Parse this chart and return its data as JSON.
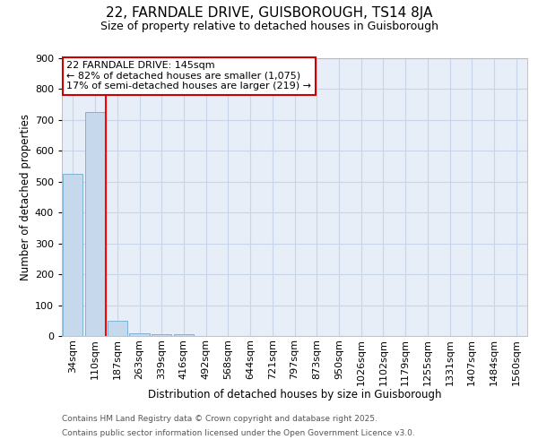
{
  "title": "22, FARNDALE DRIVE, GUISBOROUGH, TS14 8JA",
  "subtitle": "Size of property relative to detached houses in Guisborough",
  "xlabel": "Distribution of detached houses by size in Guisborough",
  "ylabel": "Number of detached properties",
  "categories": [
    "34sqm",
    "110sqm",
    "187sqm",
    "263sqm",
    "339sqm",
    "416sqm",
    "492sqm",
    "568sqm",
    "644sqm",
    "721sqm",
    "797sqm",
    "873sqm",
    "950sqm",
    "1026sqm",
    "1102sqm",
    "1179sqm",
    "1255sqm",
    "1331sqm",
    "1407sqm",
    "1484sqm",
    "1560sqm"
  ],
  "values": [
    525,
    725,
    50,
    10,
    5,
    5,
    0,
    0,
    0,
    0,
    0,
    0,
    0,
    0,
    0,
    0,
    0,
    0,
    0,
    0,
    0
  ],
  "bar_color": "#c6d9ec",
  "bar_edge_color": "#7eb3d4",
  "red_line_x": 1.5,
  "annotation_text": "22 FARNDALE DRIVE: 145sqm\n← 82% of detached houses are smaller (1,075)\n17% of semi-detached houses are larger (219) →",
  "annotation_box_facecolor": "#ffffff",
  "annotation_box_edgecolor": "#cc0000",
  "ylim": [
    0,
    900
  ],
  "yticks": [
    0,
    100,
    200,
    300,
    400,
    500,
    600,
    700,
    800,
    900
  ],
  "grid_color": "#c8d4e8",
  "bg_color": "#e8eef8",
  "footnote_line1": "Contains HM Land Registry data © Crown copyright and database right 2025.",
  "footnote_line2": "Contains public sector information licensed under the Open Government Licence v3.0.",
  "title_fontsize": 11,
  "subtitle_fontsize": 9,
  "axis_label_fontsize": 8.5,
  "tick_fontsize": 8,
  "annot_fontsize": 8
}
